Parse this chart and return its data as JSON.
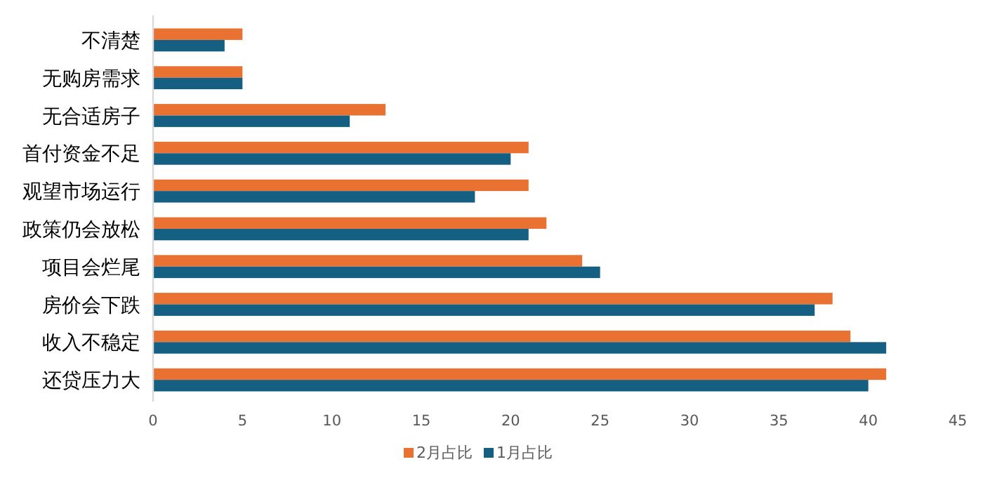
{
  "chart_data": {
    "type": "bar",
    "orientation": "horizontal",
    "categories": [
      "不清楚",
      "无购房需求",
      "无合适房子",
      "首付资金不足",
      "观望市场运行",
      "政策仍会放松",
      "项目会烂尾",
      "房价会下跌",
      "收入不稳定",
      "还贷压力大"
    ],
    "series": [
      {
        "name": "2月占比",
        "color": "#e97132",
        "values": [
          5,
          5,
          13,
          21,
          21,
          22,
          24,
          38,
          39,
          41
        ]
      },
      {
        "name": "1月占比",
        "color": "#156082",
        "values": [
          4,
          5,
          11,
          20,
          18,
          21,
          25,
          37,
          41,
          40
        ]
      }
    ],
    "xlim": [
      0,
      45
    ],
    "xticks": [
      0,
      5,
      10,
      15,
      20,
      25,
      30,
      35,
      40,
      45
    ],
    "grid": false,
    "legend": "bottom"
  }
}
